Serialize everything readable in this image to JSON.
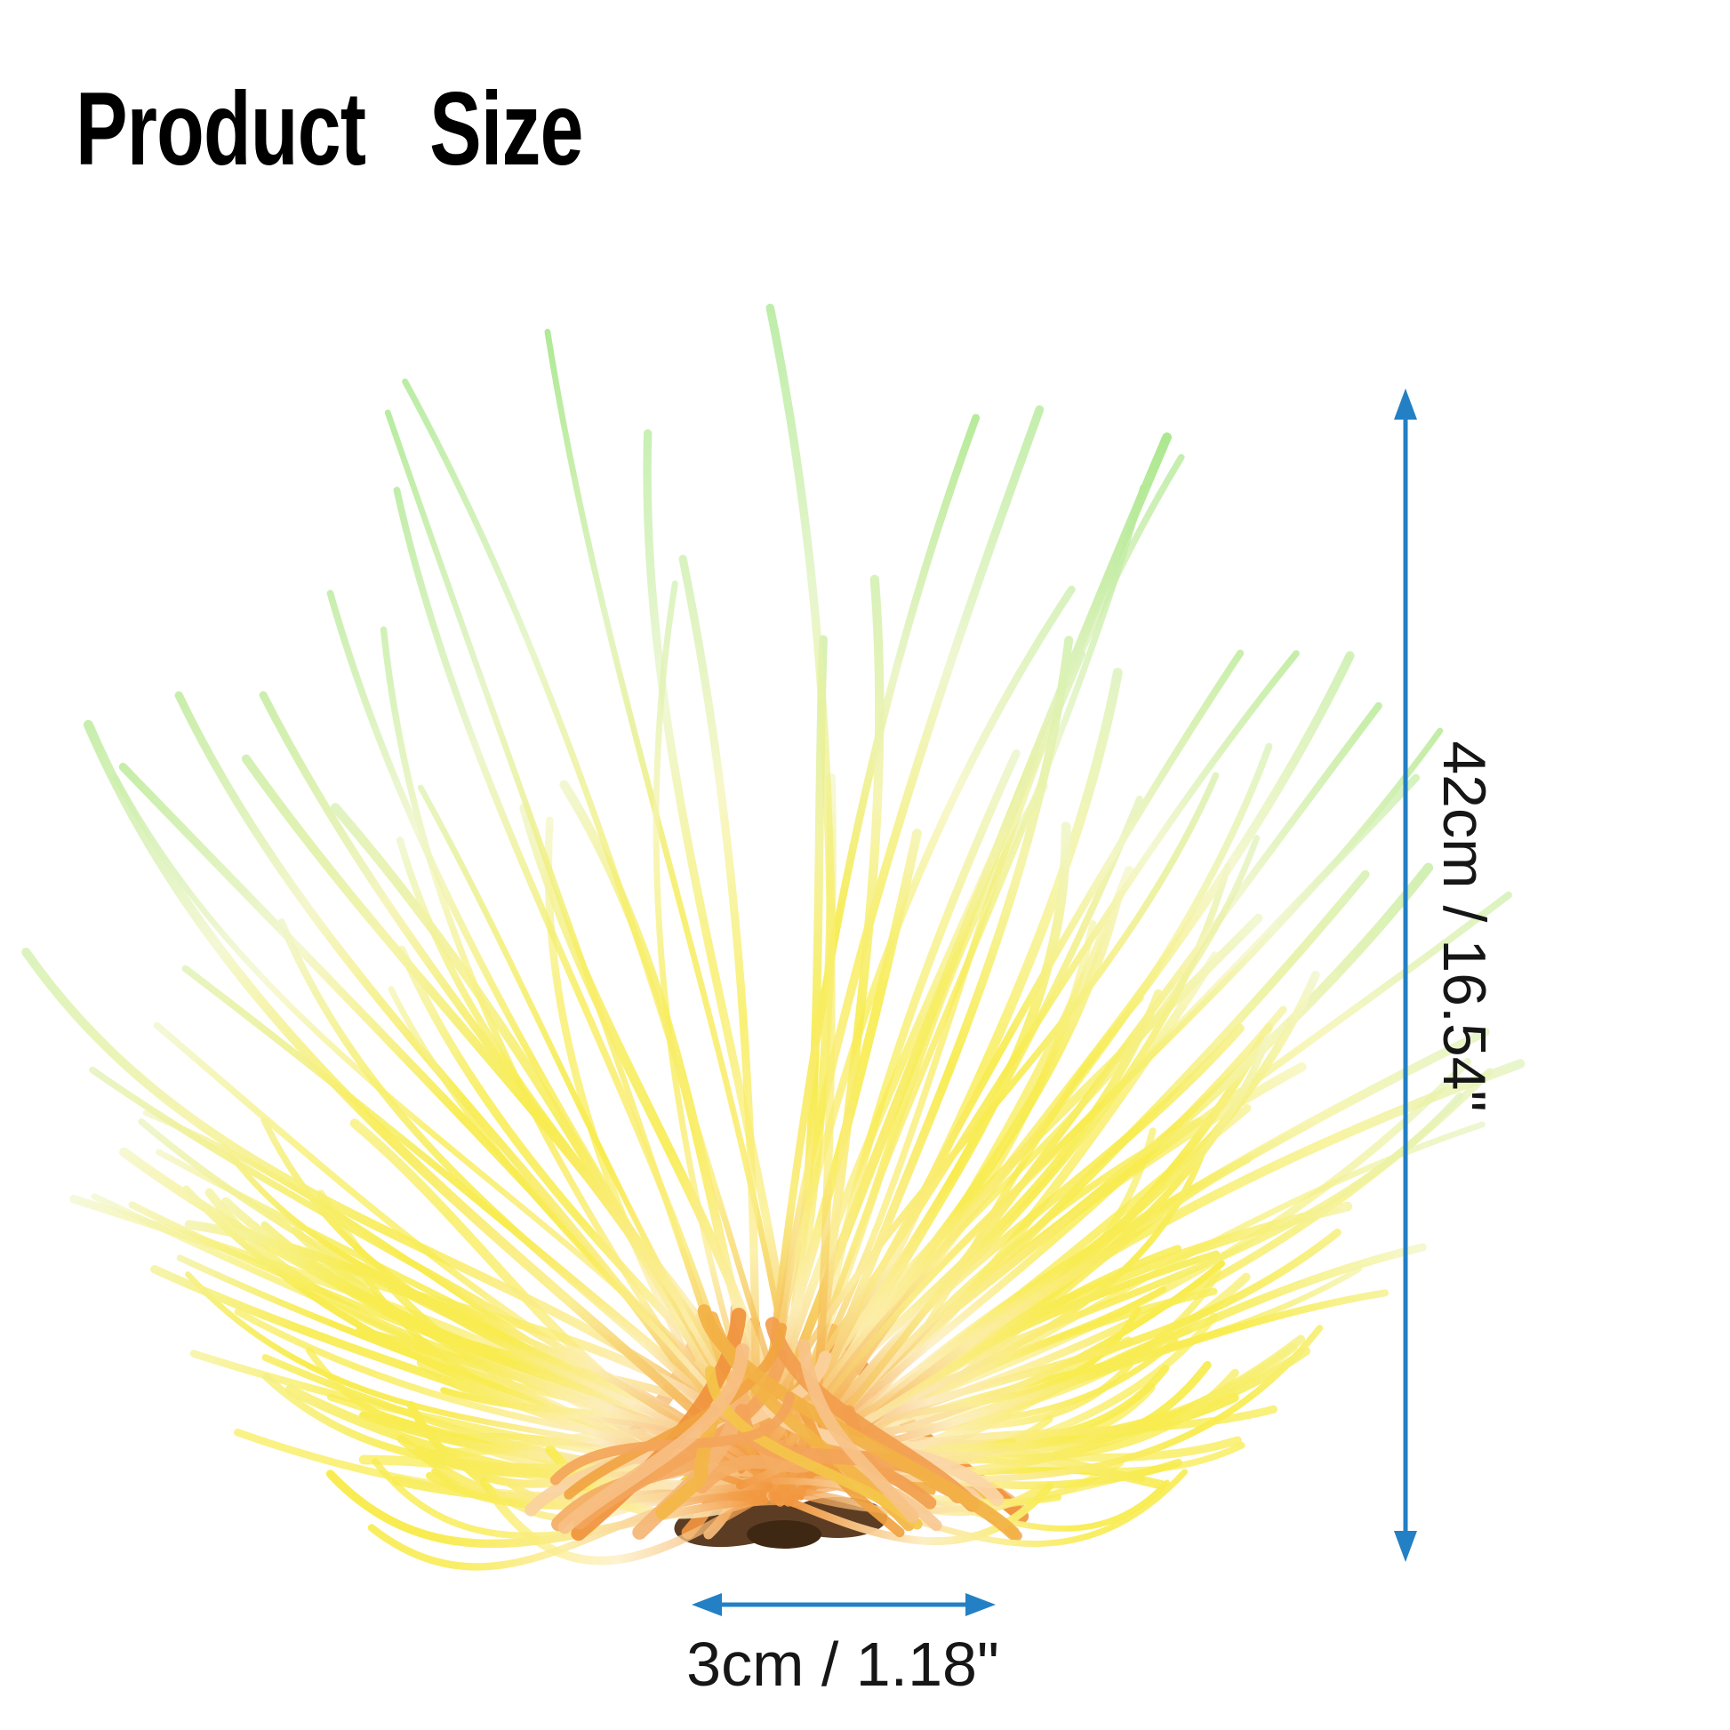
{
  "page": {
    "title": "Product Size"
  },
  "dimensions": {
    "height_label": "42cm / 16.54\"",
    "width_label": "3cm / 1.18\""
  },
  "colors": {
    "title": "#000000",
    "label": "#161616",
    "arrow": "#2380c4",
    "tendril_green": "#a7e78c",
    "tendril_pale": "#f4f7d0",
    "tendril_yellow": "#f8ec4e",
    "tendril_cream": "#fdeec8",
    "tendril_orange": "#f2973f",
    "core_orange": "#f0923c",
    "core_peach": "#fbd9ab",
    "core_yellow": "#f5d34e",
    "base_brown": "#5c3d24",
    "base_dark": "#3f2813"
  }
}
